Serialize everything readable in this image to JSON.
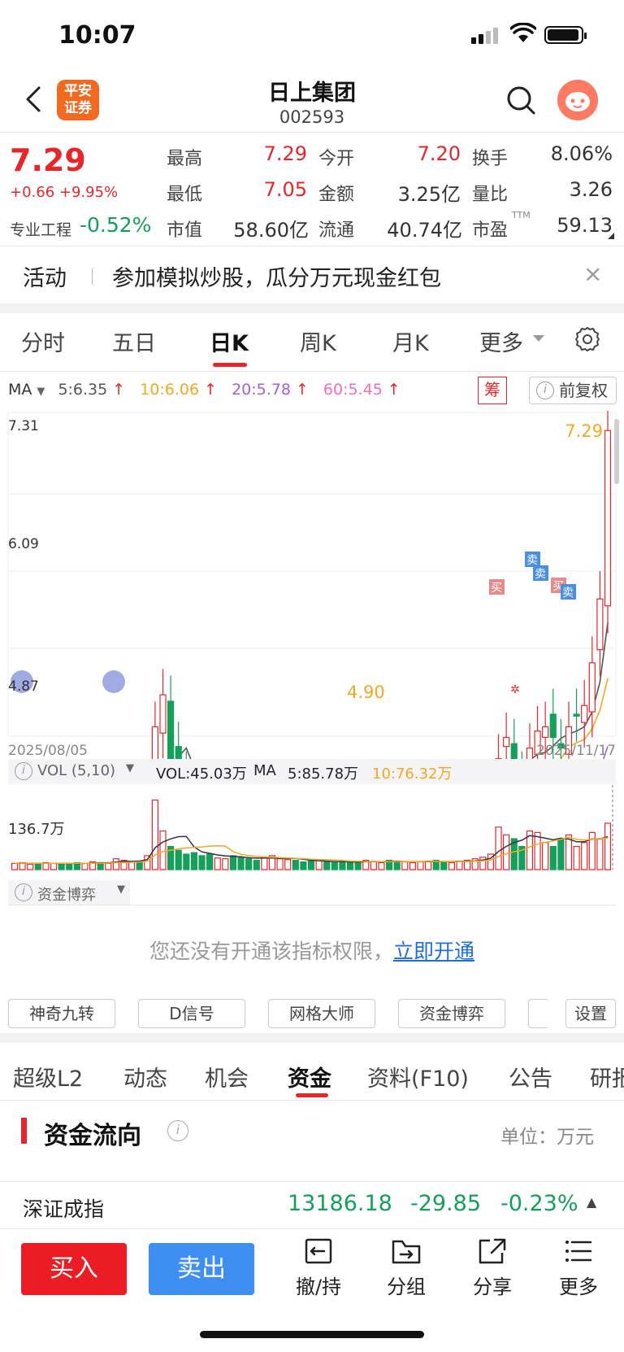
{
  "status": {
    "time": "10:07"
  },
  "header": {
    "stock_name": "日上集团",
    "stock_code": "002593",
    "logo_text": "平安证券"
  },
  "quote": {
    "price": "7.29",
    "change": "+0.66 +9.95%",
    "sector_label": "专业工程",
    "sector_value": "-0.52%",
    "fields": [
      {
        "label": "最高",
        "value": "7.29"
      },
      {
        "label": "今开",
        "value": "7.20"
      },
      {
        "label": "换手",
        "value": "8.06%"
      },
      {
        "label": "最低",
        "value": "7.05"
      },
      {
        "label": "金额",
        "value": "3.25亿"
      },
      {
        "label": "量比",
        "value": "3.26"
      },
      {
        "label": "市值",
        "value": "58.60亿"
      },
      {
        "label": "流通",
        "value": "40.74亿"
      },
      {
        "label": "市盈",
        "value": "59.13",
        "sup": "TTM"
      }
    ]
  },
  "banner": {
    "tag": "活动",
    "text": "参加模拟炒股，瓜分万元现金红包",
    "close": "×"
  },
  "period_tabs": [
    "分时",
    "五日",
    "日K",
    "周K",
    "月K",
    "更多"
  ],
  "ma_legend": {
    "label": "MA",
    "ma5": "5:6.35",
    "ma10": "10:6.06",
    "ma20": "20:5.78",
    "ma60": "60:5.45",
    "arrow": "↑",
    "chou": "筹",
    "fuquan": "前复权"
  },
  "kchart": {
    "y_top": "7.31",
    "y_mid": "6.09",
    "y_bottom": "4.87",
    "date_start": "2025/08/05",
    "date_end": "2025/11/17",
    "high_label": "7.29",
    "low_label": "4.90",
    "buy_mark": "买",
    "sell_mark": "卖"
  },
  "vol_legend": {
    "label": "VOL (5,10)",
    "vol": "VOL:45.03万",
    "ma": "MA",
    "ma5": "5:85.78万",
    "ma10": "10:76.32万",
    "y_label": "136.7万"
  },
  "zj_legend": {
    "label": "资金博弈"
  },
  "permission": {
    "text": "您还没有开通该指标权限，",
    "link": "立即开通"
  },
  "indicator_buttons": [
    "神奇九转",
    "D信号",
    "网格大师",
    "资金博弈",
    "设置"
  ],
  "info_tabs": [
    "超级L2",
    "动态",
    "机会",
    "资金",
    "资料(F10)",
    "公告",
    "研报"
  ],
  "flow": {
    "title": "资金流向",
    "unit": "单位：万元"
  },
  "index_row": {
    "name": "深证成指",
    "value": "13186.18",
    "change": "-29.85",
    "pct": "-0.23%",
    "toggle": "▲"
  },
  "bottom_bar": {
    "buy": "买入",
    "sell": "卖出",
    "items": [
      "撤/持",
      "分组",
      "分享",
      "更多"
    ]
  },
  "colors": {
    "up": "#e8262a",
    "down": "#14a05a",
    "ma5": "#555555",
    "ma10": "#f5a623",
    "ma20": "#a560e0",
    "ma60": "#f06ec0",
    "accent_blue": "#3f8ef2"
  }
}
